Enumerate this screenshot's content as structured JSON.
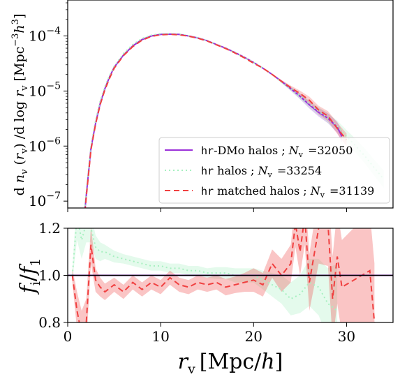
{
  "chart_data": [
    {
      "type": "line",
      "panel": "top",
      "ylabel": "d n_v (r_v)/d log r_v  [Mpc^-3 h^3]",
      "yscale": "log",
      "xlim": [
        0,
        35
      ],
      "ylim": [
        7.5e-08,
        0.00045
      ],
      "ytick_labels": [
        {
          "value": 0.0001,
          "base": "10",
          "exp": "−4"
        },
        {
          "value": 1e-05,
          "base": "10",
          "exp": "−5"
        },
        {
          "value": 1e-06,
          "base": "10",
          "exp": "−6"
        },
        {
          "value": 1e-07,
          "base": "10",
          "exp": "−7"
        }
      ],
      "legend_position": "lower-right",
      "series": [
        {
          "name_prefix": "hr",
          "name_text": "-DMo halos ; ",
          "N_label": "N",
          "N_sub": "v",
          "N_value": "=32050",
          "color": "#9b30d9",
          "dash": "solid",
          "x": [
            1.5,
            2.0,
            2.5,
            3.0,
            3.5,
            4.0,
            4.5,
            5.0,
            6.0,
            7.0,
            8.0,
            9.0,
            10.0,
            11.0,
            12.0,
            13.0,
            14.0,
            15.0,
            16.0,
            17.0,
            18.0,
            19.0,
            20.0,
            21.0,
            22.0,
            23.0,
            24.0,
            25.0,
            26.0,
            27.0,
            28.0,
            29.0,
            29.5
          ],
          "y": [
            1.5e-08,
            1.3e-07,
            9e-07,
            2.6e-06,
            6e-06,
            1.1e-05,
            1.8e-05,
            2.7e-05,
            4.5e-05,
            6.6e-05,
            8.6e-05,
            0.0001,
            0.000107,
            0.000108,
            0.000107,
            0.0001,
            9.2e-05,
            8.2e-05,
            7e-05,
            6e-05,
            5e-05,
            4.1e-05,
            3.3e-05,
            2.6e-05,
            2e-05,
            1.5e-05,
            1.1e-05,
            8e-06,
            5.6e-06,
            4.1e-06,
            3.2e-06,
            2.2e-06,
            1.5e-06
          ]
        },
        {
          "name_prefix": "hr",
          "name_text": " halos ; ",
          "N_label": "N",
          "N_sub": "v",
          "N_value": "=33254",
          "color": "#a7f0c0",
          "dash": "dotted",
          "x": [
            1.5,
            2.0,
            2.5,
            3.0,
            3.5,
            4.0,
            4.5,
            5.0,
            6.0,
            7.0,
            8.0,
            9.0,
            10.0,
            11.0,
            12.0,
            13.0,
            14.0,
            15.0,
            16.0,
            17.0,
            18.0,
            19.0,
            20.0,
            21.0,
            22.0,
            23.0,
            24.0,
            25.0,
            26.0,
            27.0,
            28.0,
            29.0,
            30.0,
            31.0,
            32.0,
            33.0,
            34.0
          ],
          "y": [
            1.7e-08,
            1.5e-07,
            1e-06,
            2.9e-06,
            6.6e-06,
            1.2e-05,
            1.9e-05,
            2.8e-05,
            4.8e-05,
            7e-05,
            9e-05,
            0.000103,
            0.00011,
            0.00011,
            0.000108,
            0.000101,
            9.3e-05,
            8.2e-05,
            7e-05,
            6e-05,
            5e-05,
            4.1e-05,
            3.3e-05,
            2.6e-05,
            2e-05,
            1.45e-05,
            1.1e-05,
            8e-06,
            5.8e-06,
            4.3e-06,
            3.2e-06,
            2.3e-06,
            1.5e-06,
            1e-06,
            6.5e-07,
            4e-07,
            2.5e-07
          ]
        },
        {
          "name_prefix": "hr",
          "name_text": " matched halos ; ",
          "N_label": "N",
          "N_sub": "v",
          "N_value": "=31139",
          "color": "#f04040",
          "dash": "dashed",
          "x": [
            1.5,
            2.0,
            2.5,
            3.0,
            3.5,
            4.0,
            4.5,
            5.0,
            6.0,
            7.0,
            8.0,
            9.0,
            10.0,
            11.0,
            12.0,
            13.0,
            14.0,
            15.0,
            16.0,
            17.0,
            18.0,
            19.0,
            20.0,
            21.0,
            22.0,
            23.0,
            24.0,
            25.0,
            26.0,
            27.0,
            28.0,
            29.0,
            30.0
          ],
          "y": [
            1.4e-08,
            1.2e-07,
            8.5e-07,
            2.5e-06,
            5.7e-06,
            1.05e-05,
            1.7e-05,
            2.6e-05,
            4.4e-05,
            6.4e-05,
            8.4e-05,
            9.8e-05,
            0.000105,
            0.000107,
            0.000105,
            9.9e-05,
            9.1e-05,
            8.1e-05,
            6.9e-05,
            5.9e-05,
            4.9e-05,
            4e-05,
            3.2e-05,
            2.6e-05,
            2e-05,
            1.5e-05,
            1.15e-05,
            9e-06,
            6.8e-06,
            4.5e-06,
            3.5e-06,
            2.1e-06,
            1.3e-06
          ]
        }
      ]
    },
    {
      "type": "line",
      "panel": "bottom",
      "xlabel_symbol": "r",
      "xlabel_sub": "v",
      "xlabel_unit": "[Mpc/",
      "xlabel_unit_h": "h",
      "xlabel_unit_close": "]",
      "ylabel_num": "f",
      "ylabel_num_sub": "i",
      "ylabel_slash": "/",
      "ylabel_den": "f",
      "ylabel_den_sub": "1",
      "xlim": [
        0,
        35
      ],
      "ylim": [
        0.8,
        1.2
      ],
      "xticks": [
        0,
        10,
        20,
        30
      ],
      "xtick_labels": [
        "0",
        "10",
        "20",
        "30"
      ],
      "yticks": [
        0.8,
        1.0,
        1.2
      ],
      "ytick_labels": [
        "0.8",
        "1.0",
        "1.2"
      ],
      "reference_line": 1.0,
      "series": [
        {
          "color": "#a7f0c0",
          "dash": "dotted",
          "band": true,
          "x": [
            0.5,
            1.0,
            1.5,
            2.0,
            2.5,
            3.0,
            3.5,
            4.0,
            5.0,
            6.0,
            7.0,
            8.0,
            9.0,
            10.0,
            11.0,
            12.0,
            13.0,
            14.0,
            15.0,
            16.0,
            17.0,
            18.0,
            19.0,
            20.0,
            21.0,
            22.0,
            23.0,
            24.0,
            25.0,
            26.0,
            27.0,
            28.0,
            29.0
          ],
          "y": [
            1.0,
            1.25,
            1.15,
            1.22,
            1.2,
            1.12,
            1.1,
            1.1,
            1.08,
            1.07,
            1.06,
            1.05,
            1.04,
            1.04,
            1.03,
            1.03,
            1.02,
            1.02,
            1.01,
            1.01,
            1.01,
            1.0,
            1.0,
            1.0,
            0.98,
            0.96,
            0.94,
            0.9,
            0.92,
            0.97,
            0.95,
            0.88,
            0.85
          ],
          "band_width": [
            0.02,
            0.1,
            0.08,
            0.08,
            0.06,
            0.05,
            0.04,
            0.03,
            0.025,
            0.02,
            0.02,
            0.02,
            0.02,
            0.02,
            0.02,
            0.02,
            0.02,
            0.02,
            0.02,
            0.025,
            0.025,
            0.03,
            0.03,
            0.03,
            0.04,
            0.05,
            0.06,
            0.07,
            0.08,
            0.1,
            0.12,
            0.15,
            0.2
          ]
        },
        {
          "color": "#f04040",
          "dash": "dashed",
          "band": true,
          "x": [
            0.5,
            1.0,
            1.5,
            2.0,
            2.5,
            3.0,
            3.5,
            4.0,
            5.0,
            6.0,
            7.0,
            8.0,
            9.0,
            10.0,
            11.0,
            12.0,
            13.0,
            14.0,
            15.0,
            16.0,
            17.0,
            18.0,
            19.0,
            20.0,
            21.0,
            22.0,
            23.0,
            24.0,
            24.5,
            25.0,
            25.5,
            26.0,
            27.0,
            28.0,
            28.5,
            29.0,
            29.5,
            32.5,
            33.0
          ],
          "y": [
            1.0,
            0.85,
            0.75,
            0.8,
            1.13,
            0.98,
            0.95,
            0.93,
            0.96,
            0.93,
            0.97,
            0.94,
            0.97,
            0.95,
            0.99,
            0.96,
            0.95,
            0.97,
            0.96,
            0.97,
            0.95,
            0.96,
            0.97,
            0.98,
            0.96,
            1.05,
            1.0,
            1.05,
            1.22,
            1.1,
            1.25,
            0.97,
            1.2,
            1.22,
            0.9,
            1.08,
            0.95,
            1.02,
            0.8
          ],
          "band_width": [
            0.03,
            0.08,
            0.1,
            0.1,
            0.08,
            0.05,
            0.04,
            0.035,
            0.03,
            0.03,
            0.03,
            0.03,
            0.03,
            0.03,
            0.03,
            0.03,
            0.03,
            0.03,
            0.03,
            0.03,
            0.035,
            0.035,
            0.04,
            0.05,
            0.05,
            0.06,
            0.07,
            0.08,
            0.1,
            0.1,
            0.12,
            0.12,
            0.15,
            0.18,
            0.18,
            0.2,
            0.2,
            0.25,
            0.25
          ]
        },
        {
          "color": "#9b30d9",
          "dash": "solid",
          "band": false,
          "x": [
            0,
            35
          ],
          "y": [
            1.0,
            1.0
          ]
        }
      ]
    }
  ]
}
